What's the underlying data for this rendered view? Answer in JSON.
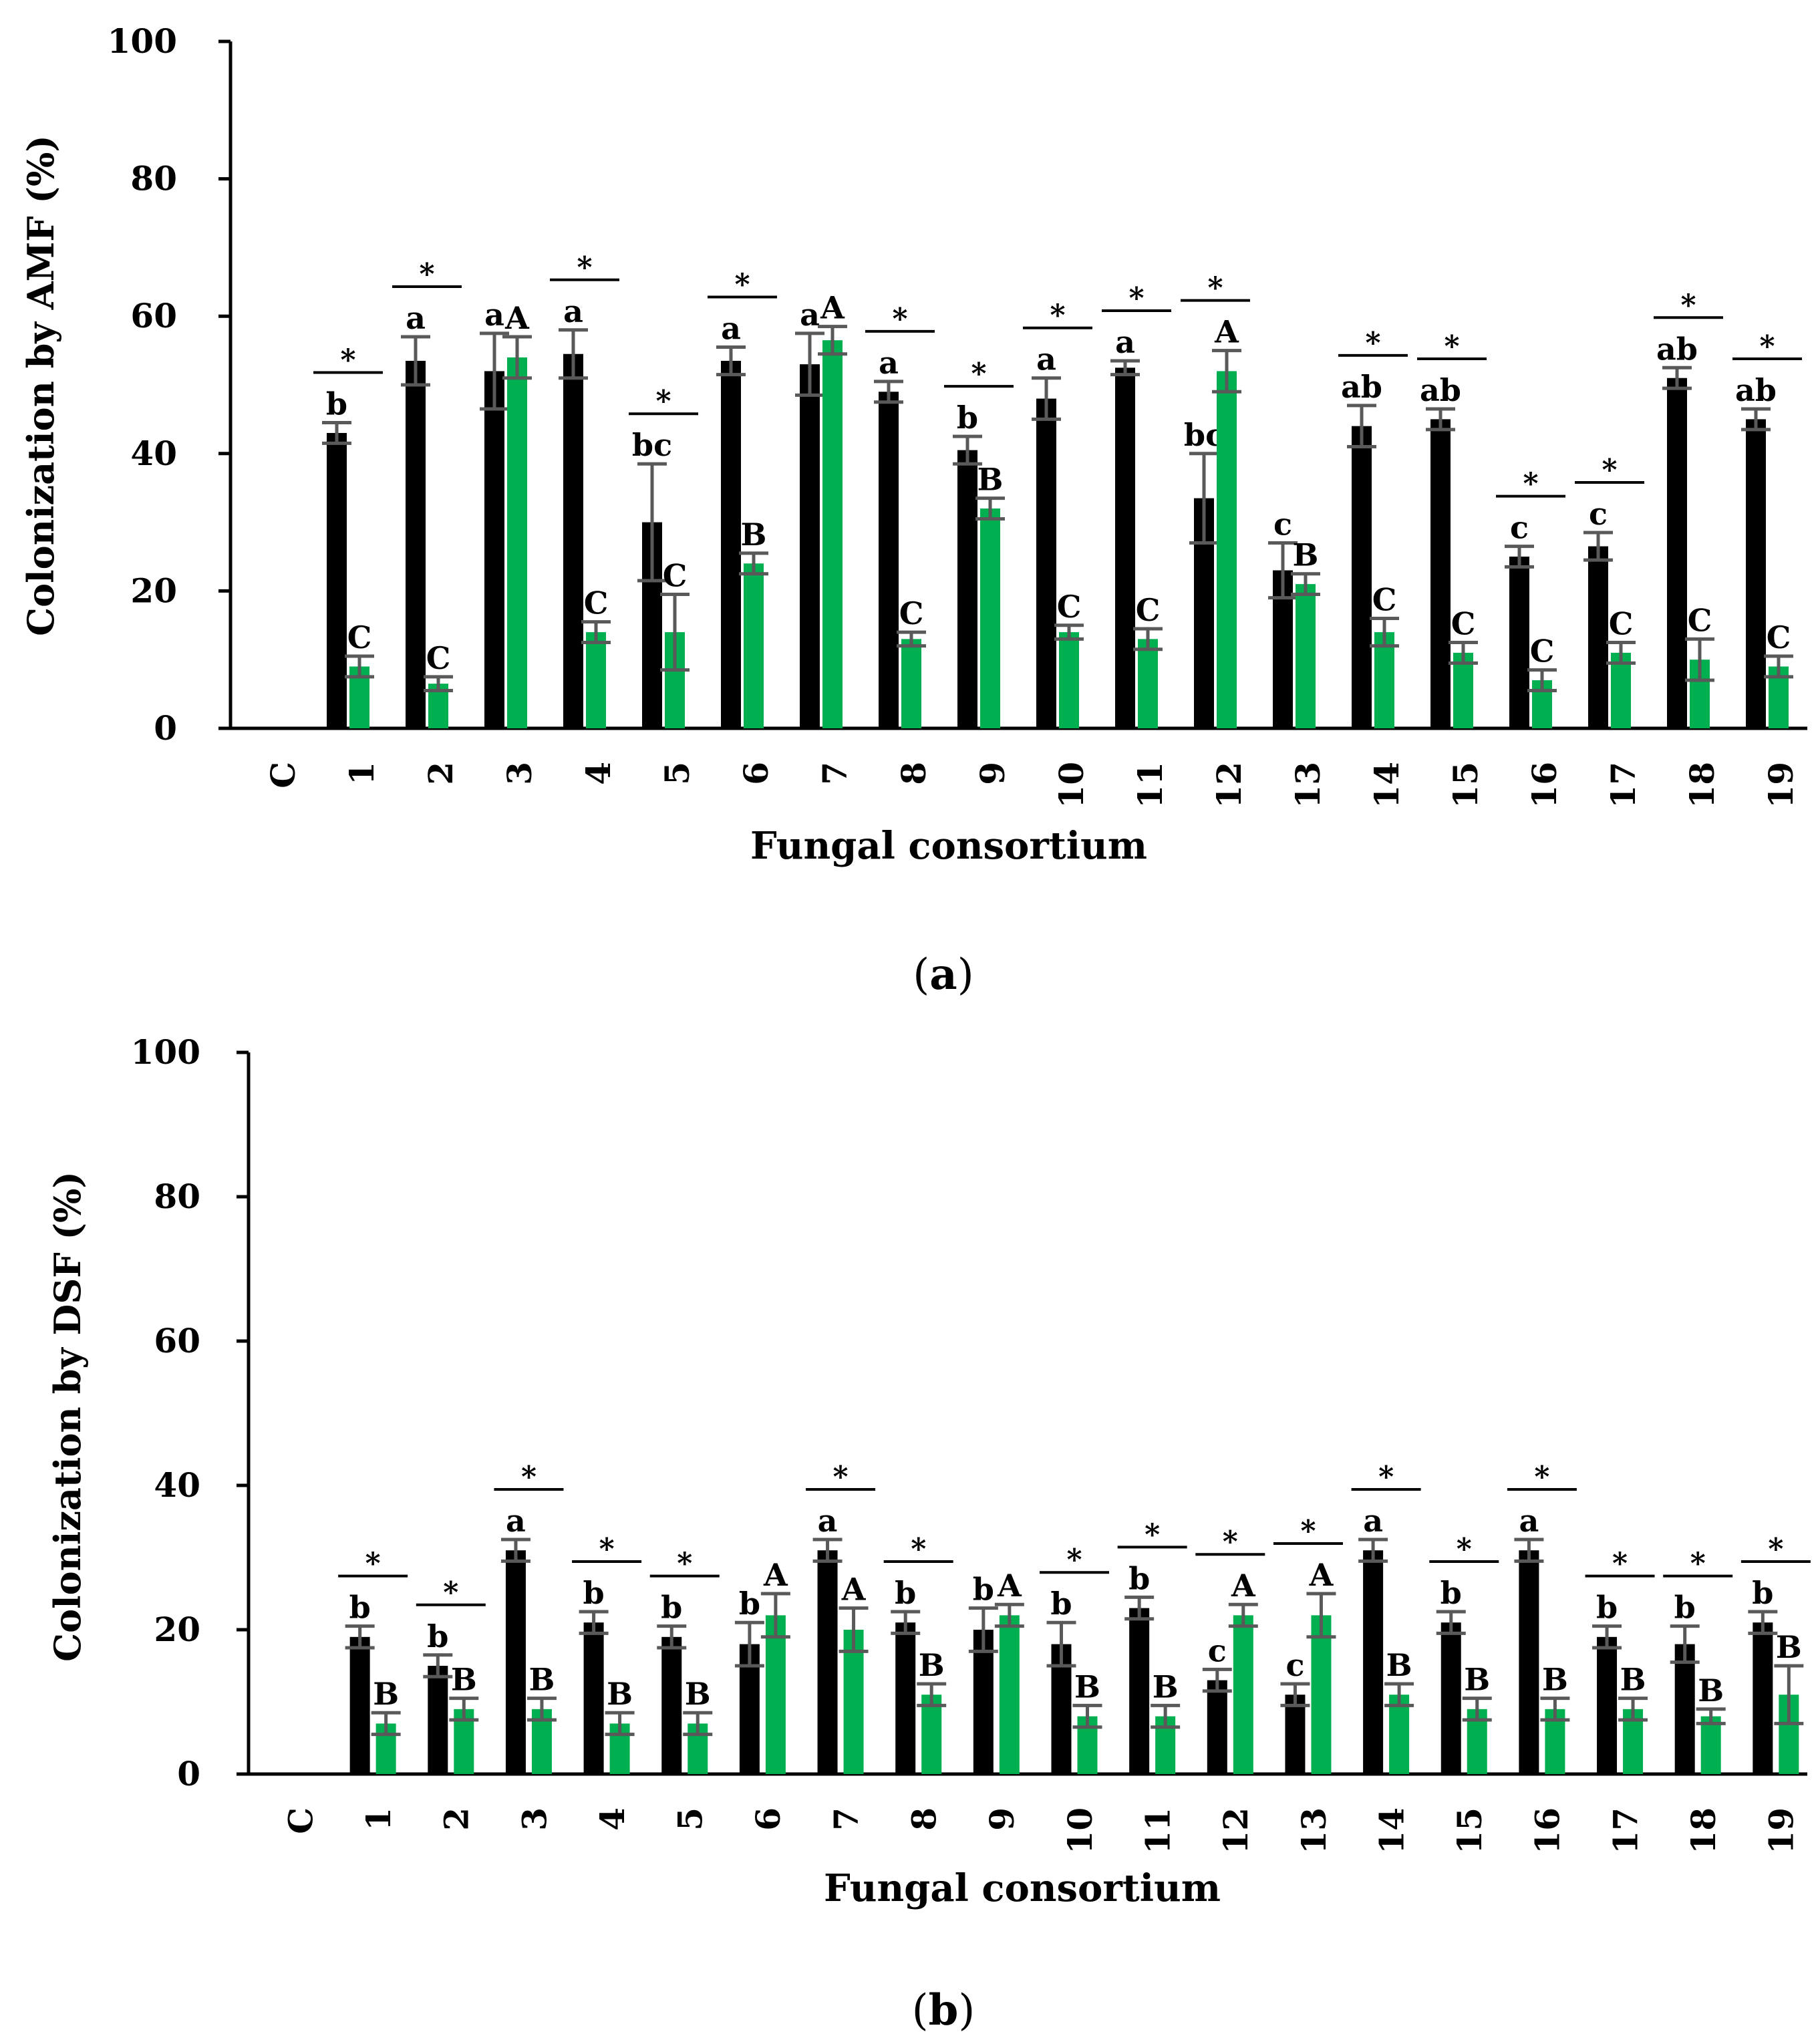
{
  "panels": [
    {
      "caption_letter": "a",
      "chart_data": {
        "type": "bar",
        "title": "",
        "xlabel": "Fungal consortium",
        "ylabel": "Colonization by AMF (%)",
        "ylim": [
          0,
          100
        ],
        "yticks": [
          "0",
          "20",
          "40",
          "60",
          "80",
          "100"
        ],
        "grid": false,
        "categories": [
          "C",
          "1",
          "2",
          "3",
          "4",
          "5",
          "6",
          "7",
          "8",
          "9",
          "10",
          "11",
          "12",
          "13",
          "14",
          "15",
          "16",
          "17",
          "18",
          "19"
        ],
        "colors": [
          "#000000",
          "#00b050"
        ],
        "series": [
          {
            "values": [
              0,
              43,
              53.5,
              52,
              54.5,
              30,
              53.5,
              53,
              49,
              40.5,
              48,
              52.5,
              33.5,
              23,
              44,
              45,
              25,
              26.5,
              51,
              45
            ],
            "errors": [
              0,
              1.5,
              3.5,
              5.5,
              3.5,
              8.5,
              2,
              4.5,
              1.5,
              2,
              3,
              1,
              6.5,
              4,
              3,
              1.5,
              1.5,
              2,
              1.5,
              1.5
            ],
            "letters": [
              "",
              "b",
              "a",
              "a",
              "a",
              "bc",
              "a",
              "a",
              "a",
              "b",
              "a",
              "a",
              "bc",
              "c",
              "ab",
              "ab",
              "c",
              "c",
              "ab",
              "ab"
            ]
          },
          {
            "values": [
              0,
              9,
              6.5,
              54,
              14,
              14,
              24,
              56.5,
              13,
              32,
              14,
              13,
              52,
              21,
              14,
              11,
              7,
              11,
              10,
              9
            ],
            "errors": [
              0,
              1.5,
              1,
              3,
              1.5,
              5.5,
              1.5,
              2,
              1,
              1.5,
              1,
              1.5,
              3,
              1.5,
              2,
              1.5,
              1.5,
              1.5,
              3,
              1.5
            ],
            "letters": [
              "",
              "C",
              "C",
              "A",
              "C",
              "C",
              "B",
              "A",
              "C",
              "B",
              "C",
              "C",
              "A",
              "B",
              "C",
              "C",
              "C",
              "C",
              "C",
              "C"
            ]
          }
        ],
        "significance": [
          "",
          "*",
          "*",
          "",
          "*",
          "*",
          "*",
          "",
          "*",
          "*",
          "*",
          "*",
          "*",
          "",
          "*",
          "*",
          "*",
          "*",
          "*",
          "*"
        ]
      }
    },
    {
      "caption_letter": "b",
      "chart_data": {
        "type": "bar",
        "title": "",
        "xlabel": "Fungal consortium",
        "ylabel": "Colonization  by  DSF (%)",
        "ylim": [
          0,
          100
        ],
        "yticks": [
          "0",
          "20",
          "40",
          "60",
          "80",
          "100"
        ],
        "grid": false,
        "categories": [
          "C",
          "1",
          "2",
          "3",
          "4",
          "5",
          "6",
          "7",
          "8",
          "9",
          "10",
          "11",
          "12",
          "13",
          "14",
          "15",
          "16",
          "17",
          "18",
          "19"
        ],
        "colors": [
          "#000000",
          "#00b050"
        ],
        "series": [
          {
            "values": [
              0,
              19,
              15,
              31,
              21,
              19,
              18,
              31,
              21,
              20,
              18,
              23,
              13,
              11,
              31,
              21,
              31,
              19,
              18,
              21
            ],
            "errors": [
              0,
              1.5,
              1.5,
              1.5,
              1.5,
              1.5,
              3,
              1.5,
              1.5,
              3,
              3,
              1.5,
              1.5,
              1.5,
              1.5,
              1.5,
              1.5,
              1.5,
              2.5,
              1.5
            ],
            "letters": [
              "",
              "b",
              "b",
              "a",
              "b",
              "b",
              "b",
              "a",
              "b",
              "b",
              "b",
              "b",
              "c",
              "c",
              "a",
              "b",
              "a",
              "b",
              "b",
              "b"
            ]
          },
          {
            "values": [
              0,
              7,
              9,
              9,
              7,
              7,
              22,
              20,
              11,
              22,
              8,
              8,
              22,
              22,
              11,
              9,
              9,
              9,
              8,
              11
            ],
            "errors": [
              0,
              1.5,
              1.5,
              1.5,
              1.5,
              1.5,
              3,
              3,
              1.5,
              1.5,
              1.5,
              1.5,
              1.5,
              3,
              1.5,
              1.5,
              1.5,
              1.5,
              1,
              4
            ],
            "letters": [
              "",
              "B",
              "B",
              "B",
              "B",
              "B",
              "A",
              "A",
              "B",
              "A",
              "B",
              "B",
              "A",
              "A",
              "B",
              "B",
              "B",
              "B",
              "B",
              "B"
            ]
          }
        ],
        "significance": [
          "",
          "*",
          "*",
          "*",
          "*",
          "*",
          "",
          "*",
          "*",
          "",
          "*",
          "*",
          "*",
          "*",
          "*",
          "*",
          "*",
          "*",
          "*",
          "*"
        ]
      }
    }
  ]
}
